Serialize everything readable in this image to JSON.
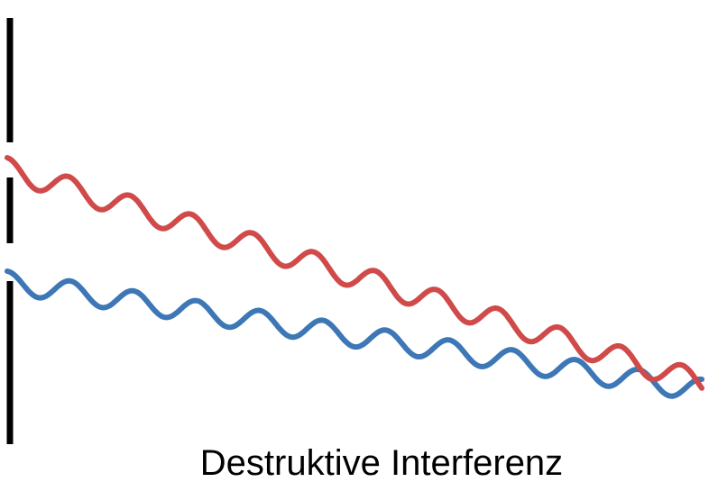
{
  "caption": "Destruktive Interferenz",
  "colors": {
    "wave_upper": "#d04a4a",
    "wave_lower": "#3d77b6",
    "barrier": "#000000"
  }
}
